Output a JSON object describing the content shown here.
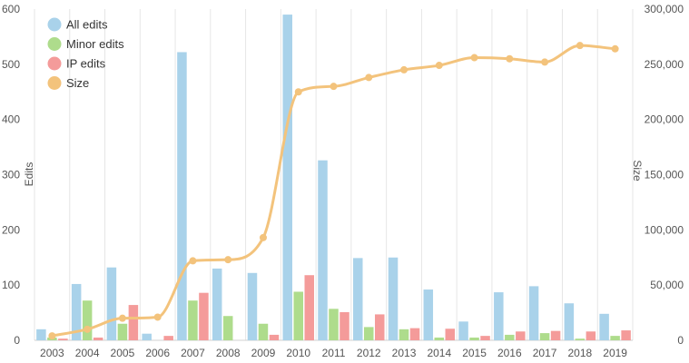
{
  "chart_data": {
    "type": "bar",
    "categories": [
      "2003",
      "2004",
      "2005",
      "2006",
      "2007",
      "2008",
      "2009",
      "2010",
      "2011",
      "2012",
      "2013",
      "2014",
      "2015",
      "2016",
      "2017",
      "2018",
      "2019"
    ],
    "series": [
      {
        "name": "All edits",
        "axis": "left",
        "type": "bar",
        "color": "#a9d2ea",
        "values": [
          20,
          102,
          132,
          12,
          522,
          130,
          122,
          590,
          326,
          149,
          150,
          92,
          34,
          87,
          98,
          67,
          48
        ]
      },
      {
        "name": "Minor edits",
        "axis": "left",
        "type": "bar",
        "color": "#aedc8c",
        "values": [
          5,
          72,
          30,
          0,
          72,
          44,
          30,
          88,
          57,
          24,
          20,
          5,
          5,
          10,
          13,
          3,
          8
        ]
      },
      {
        "name": "IP edits",
        "axis": "left",
        "type": "bar",
        "color": "#f49b9a",
        "values": [
          3,
          5,
          64,
          8,
          86,
          0,
          10,
          118,
          51,
          47,
          22,
          21,
          8,
          16,
          17,
          16,
          18
        ]
      },
      {
        "name": "Size",
        "axis": "right",
        "type": "line",
        "color": "#f3c37c",
        "values": [
          4000,
          10000,
          20000,
          21000,
          72000,
          73000,
          93000,
          225000,
          230000,
          238000,
          245000,
          249000,
          256000,
          255000,
          252000,
          267000,
          264000
        ]
      }
    ],
    "ylabel": "Edits",
    "y2label": "Size",
    "ylim": [
      0,
      600
    ],
    "y2lim": [
      0,
      300000
    ],
    "yticks": [
      "0",
      "100",
      "200",
      "300",
      "400",
      "500",
      "600"
    ],
    "y2ticks": [
      "0",
      "50,000",
      "100,000",
      "150,000",
      "200,000",
      "250,000",
      "300,000"
    ],
    "legend_position": "top-left",
    "grid": "vertical"
  }
}
